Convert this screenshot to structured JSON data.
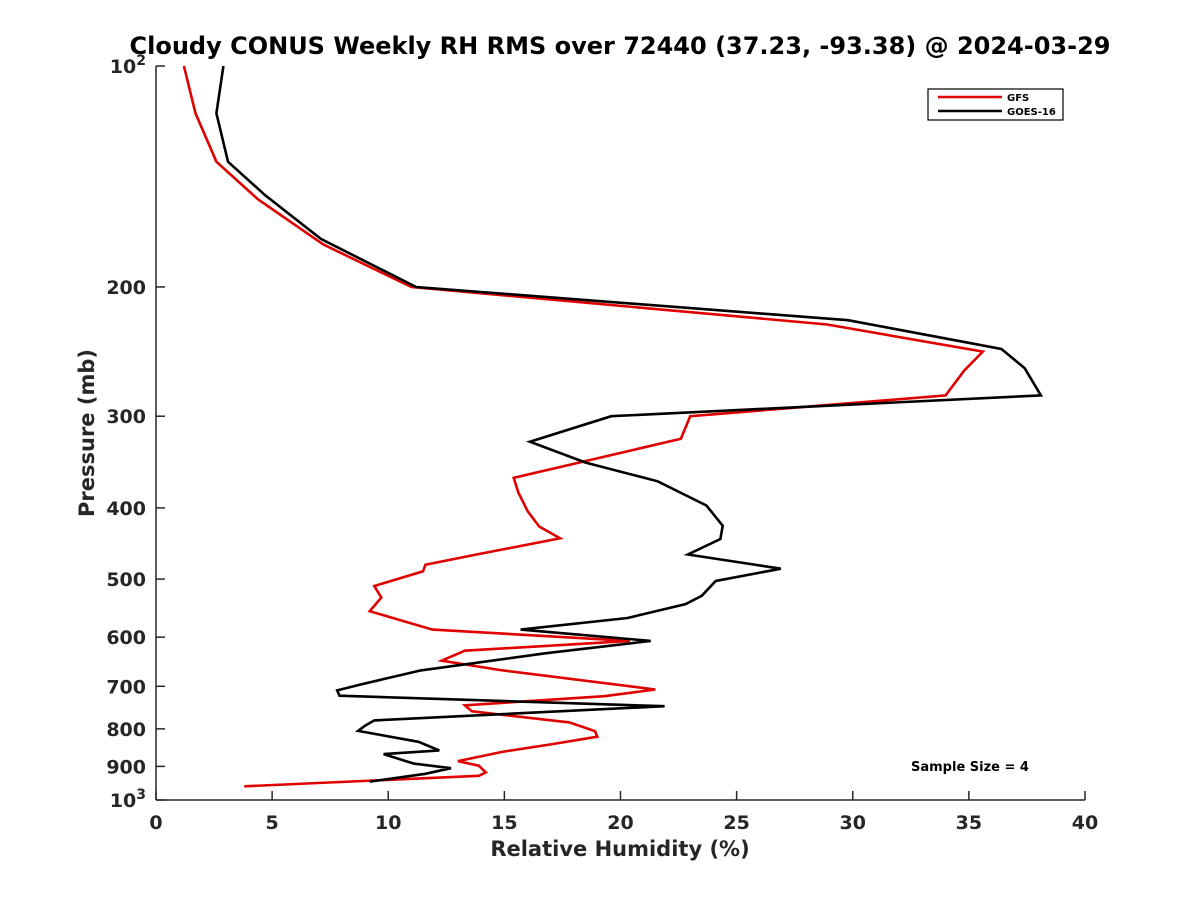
{
  "chart_data": {
    "type": "line",
    "title": "Cloudy CONUS Weekly RH RMS over 72440 (37.23, -93.38) @ 2024-03-29",
    "xlabel": "Relative Humidity (%)",
    "ylabel": "Pressure (mb)",
    "xlim": [
      0,
      40
    ],
    "ylim": [
      100,
      1000
    ],
    "y_scale": "log",
    "y_reversed": true,
    "x_ticks": [
      0,
      5,
      10,
      15,
      20,
      25,
      30,
      35,
      40
    ],
    "y_ticks": [
      {
        "value": 100,
        "label": "10",
        "sup": "2"
      },
      {
        "value": 200,
        "label": "200"
      },
      {
        "value": 300,
        "label": "300"
      },
      {
        "value": 400,
        "label": "400"
      },
      {
        "value": 500,
        "label": "500"
      },
      {
        "value": 600,
        "label": "600"
      },
      {
        "value": 700,
        "label": "700"
      },
      {
        "value": 800,
        "label": "800"
      },
      {
        "value": 900,
        "label": "900"
      },
      {
        "value": 1000,
        "label": "10",
        "sup": "3"
      }
    ],
    "grid": false,
    "legend_position": "top-right",
    "series": [
      {
        "name": "GFS",
        "color": "#e00000",
        "points": [
          [
            1.2,
            100
          ],
          [
            1.7,
            116
          ],
          [
            2.6,
            135
          ],
          [
            4.4,
            152
          ],
          [
            7.2,
            175
          ],
          [
            11.0,
            200
          ],
          [
            28.9,
            225
          ],
          [
            35.6,
            245
          ],
          [
            34.8,
            260
          ],
          [
            34.0,
            281
          ],
          [
            23.0,
            300
          ],
          [
            22.6,
            322
          ],
          [
            15.4,
            364
          ],
          [
            15.6,
            381
          ],
          [
            16.0,
            404
          ],
          [
            16.5,
            424
          ],
          [
            17.4,
            440
          ],
          [
            13.8,
            463
          ],
          [
            11.6,
            478
          ],
          [
            11.5,
            488
          ],
          [
            9.4,
            511
          ],
          [
            9.7,
            530
          ],
          [
            9.2,
            553
          ],
          [
            11.9,
            586
          ],
          [
            20.4,
            607
          ],
          [
            13.3,
            626
          ],
          [
            12.3,
            646
          ],
          [
            14.8,
            665
          ],
          [
            21.5,
            707
          ],
          [
            19.3,
            722
          ],
          [
            13.3,
            743
          ],
          [
            13.6,
            757
          ],
          [
            17.8,
            784
          ],
          [
            18.9,
            806
          ],
          [
            19.0,
            820
          ],
          [
            17.0,
            840
          ],
          [
            14.9,
            860
          ],
          [
            13.0,
            885
          ],
          [
            13.9,
            898
          ],
          [
            14.2,
            917
          ],
          [
            13.9,
            927
          ],
          [
            3.8,
            958
          ]
        ]
      },
      {
        "name": "GOES-16",
        "color": "#000000",
        "points": [
          [
            2.9,
            100
          ],
          [
            2.6,
            116
          ],
          [
            3.1,
            135
          ],
          [
            4.7,
            150
          ],
          [
            7.1,
            172
          ],
          [
            11.2,
            200
          ],
          [
            29.8,
            222
          ],
          [
            36.4,
            243
          ],
          [
            37.4,
            258
          ],
          [
            38.1,
            281
          ],
          [
            19.6,
            300
          ],
          [
            16.1,
            325
          ],
          [
            18.5,
            347
          ],
          [
            21.6,
            368
          ],
          [
            23.7,
            397
          ],
          [
            24.4,
            423
          ],
          [
            24.3,
            441
          ],
          [
            22.9,
            463
          ],
          [
            26.9,
            484
          ],
          [
            24.1,
            503
          ],
          [
            23.5,
            527
          ],
          [
            22.8,
            541
          ],
          [
            20.3,
            565
          ],
          [
            15.7,
            586
          ],
          [
            21.3,
            607
          ],
          [
            16.8,
            631
          ],
          [
            11.4,
            666
          ],
          [
            8.9,
            695
          ],
          [
            7.8,
            709
          ],
          [
            7.9,
            721
          ],
          [
            21.9,
            745
          ],
          [
            9.4,
            779
          ],
          [
            9.0,
            792
          ],
          [
            8.7,
            805
          ],
          [
            11.3,
            833
          ],
          [
            12.2,
            856
          ],
          [
            9.8,
            866
          ],
          [
            11.1,
            892
          ],
          [
            12.7,
            905
          ],
          [
            11.6,
            921
          ],
          [
            9.2,
            944
          ]
        ]
      }
    ],
    "annotation": "Sample Size = 4"
  }
}
